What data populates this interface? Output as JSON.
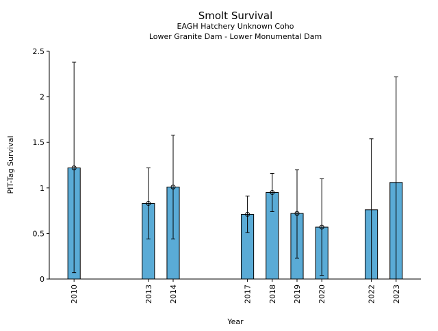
{
  "chart_data": {
    "type": "bar",
    "title": "Smolt Survival",
    "subtitle_lines": [
      "EAGH Hatchery Unknown Coho",
      "Lower Granite Dam - Lower Monumental Dam"
    ],
    "xlabel": "Year",
    "ylabel": "PIT-Tag Survival",
    "xlim": [
      2009,
      2024
    ],
    "ylim": [
      0,
      2.5
    ],
    "yticks": [
      0,
      0.5,
      1,
      1.5,
      2,
      2.5
    ],
    "ytick_labels": [
      "0",
      "0.5",
      "1",
      "1.5",
      "2",
      "2.5"
    ],
    "grid": false,
    "bar_color": "#5aabd6",
    "categories": [
      "2010",
      "2013",
      "2014",
      "2017",
      "2018",
      "2019",
      "2020",
      "2022",
      "2023"
    ],
    "values": [
      1.22,
      0.83,
      1.01,
      0.71,
      0.95,
      0.72,
      0.57,
      0.76,
      1.06
    ],
    "error_upper": [
      2.38,
      1.22,
      1.58,
      0.91,
      1.16,
      1.2,
      1.1,
      1.54,
      2.22
    ],
    "error_lower": [
      0.07,
      0.44,
      0.44,
      0.51,
      0.74,
      0.23,
      0.04,
      0,
      0
    ],
    "point_marker": [
      true,
      true,
      true,
      true,
      true,
      true,
      true,
      false,
      false
    ]
  }
}
